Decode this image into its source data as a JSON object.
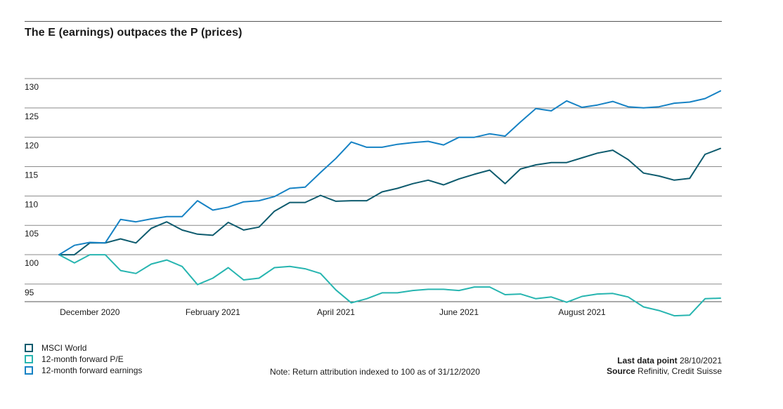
{
  "title": "The E (earnings) outpaces the P (prices)",
  "note": "Note: Return attribution indexed to 100 as of 31/12/2020",
  "last_data_label": "Last data point",
  "last_data_value": "28/10/2021",
  "source_label": "Source",
  "source_value": "Refinitiv, Credit Suisse",
  "chart_data": {
    "type": "line",
    "title": "The E (earnings) outpaces the P (prices)",
    "xlabel": "",
    "ylabel": "",
    "ylim": [
      92,
      130
    ],
    "yticks": [
      95,
      100,
      105,
      110,
      115,
      120,
      125,
      130
    ],
    "xtick_labels": [
      "December 2020",
      "February 2021",
      "April 2021",
      "June 2021",
      "August 2021"
    ],
    "xtick_index": [
      2,
      10,
      18,
      26,
      34
    ],
    "grid": true,
    "legend_position": "bottom-left",
    "x": [
      "31/12/2020",
      "08/01/2021",
      "15/01/2021",
      "22/01/2021",
      "29/01/2021",
      "05/02/2021",
      "12/02/2021",
      "19/02/2021",
      "26/02/2021",
      "05/03/2021",
      "12/03/2021",
      "19/03/2021",
      "26/03/2021",
      "02/04/2021",
      "09/04/2021",
      "16/04/2021",
      "23/04/2021",
      "30/04/2021",
      "07/05/2021",
      "14/05/2021",
      "21/05/2021",
      "28/05/2021",
      "04/06/2021",
      "11/06/2021",
      "18/06/2021",
      "25/06/2021",
      "02/07/2021",
      "09/07/2021",
      "16/07/2021",
      "23/07/2021",
      "30/07/2021",
      "06/08/2021",
      "13/08/2021",
      "20/08/2021",
      "27/08/2021",
      "03/09/2021",
      "10/09/2021",
      "17/09/2021",
      "24/09/2021",
      "01/10/2021",
      "08/10/2021",
      "15/10/2021",
      "22/10/2021",
      "28/10/2021"
    ],
    "series": [
      {
        "name": "MSCI World",
        "color": "#0e5b6e",
        "values": [
          100,
          100,
          102,
          102,
          102.7,
          102,
          104.5,
          105.6,
          104.2,
          103.5,
          103.3,
          105.5,
          104.2,
          104.7,
          107.4,
          108.9,
          108.9,
          110.1,
          109.1,
          109.2,
          109.2,
          110.7,
          111.3,
          112.1,
          112.7,
          111.9,
          112.9,
          113.7,
          114.4,
          112.1,
          114.6,
          115.3,
          115.7,
          115.7,
          116.5,
          117.3,
          117.8,
          116.2,
          113.9,
          113.4,
          112.7,
          113,
          117.1,
          118.1
        ]
      },
      {
        "name": "12-month forward P/E",
        "color": "#27b5b0",
        "values": [
          100,
          98.6,
          100,
          100,
          97.3,
          96.8,
          98.4,
          99.1,
          98,
          94.9,
          96,
          97.8,
          95.7,
          96,
          97.8,
          98,
          97.6,
          96.8,
          94,
          91.8,
          92.5,
          93.5,
          93.5,
          93.9,
          94.1,
          94.1,
          93.9,
          94.5,
          94.5,
          93.2,
          93.3,
          92.5,
          92.8,
          91.9,
          92.9,
          93.3,
          93.4,
          92.8,
          91.1,
          90.5,
          89.6,
          89.7,
          92.5,
          92.6
        ]
      },
      {
        "name": "12-month forward earnings",
        "color": "#1682c4",
        "values": [
          100,
          101.6,
          102.1,
          102,
          106,
          105.6,
          106.1,
          106.5,
          106.5,
          109.2,
          107.6,
          108.1,
          109,
          109.2,
          109.9,
          111.3,
          111.5,
          114,
          116.4,
          119.2,
          118.3,
          118.3,
          118.8,
          119.1,
          119.3,
          118.7,
          120,
          120,
          120.6,
          120.2,
          122.6,
          124.9,
          124.5,
          126.2,
          125.1,
          125.5,
          126.1,
          125.2,
          125,
          125.2,
          125.8,
          126,
          126.6,
          127.9
        ]
      }
    ]
  }
}
